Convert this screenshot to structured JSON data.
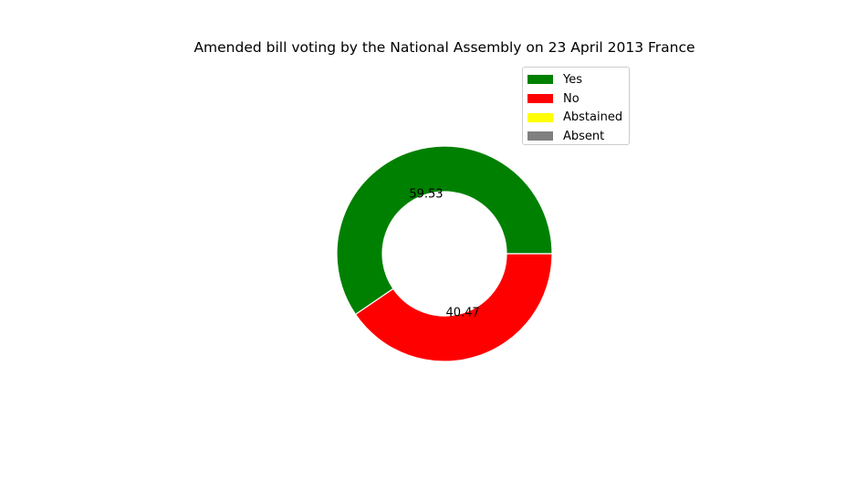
{
  "chart_data": {
    "type": "pie",
    "style": "donut",
    "title": "Amended bill voting by the National Assembly on 23 April 2013 France",
    "categories": [
      "Yes",
      "No",
      "Abstained",
      "Absent"
    ],
    "values": [
      59.53,
      40.47,
      0,
      0
    ],
    "value_labels": [
      "59.53",
      "40.47",
      "",
      ""
    ],
    "colors": [
      "#008000",
      "#ff0000",
      "#ffff00",
      "#808080"
    ],
    "legend_position": "top-right"
  }
}
